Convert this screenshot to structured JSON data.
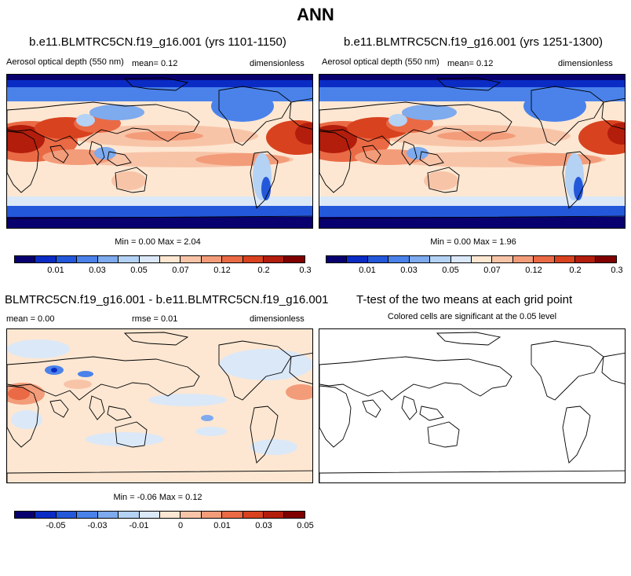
{
  "figure": {
    "title": "ANN"
  },
  "colors": {
    "scale": [
      "#08006f",
      "#0a2cc4",
      "#2458db",
      "#4a82ea",
      "#7eaaee",
      "#b4d2f4",
      "#dbe8f8",
      "#fde7d2",
      "#f8c4a8",
      "#f39c7a",
      "#ea6a45",
      "#d9421f",
      "#b31d0c",
      "#800000"
    ],
    "land_outline": "#000000",
    "background": "#ffffff"
  },
  "panels": {
    "p1": {
      "title": "b.e11.BLMTRC5CN.f19_g16.001 (yrs 1101-1150)",
      "variable": "Aerosol optical depth (550 nm)",
      "mean": "mean=   0.12",
      "units": "dimensionless",
      "minmax": "Min =   0.00 Max =   2.04"
    },
    "p2": {
      "title": "b.e11.BLMTRC5CN.f19_g16.001 (yrs 1251-1300)",
      "variable": "Aerosol optical depth (550 nm)",
      "mean": "mean=   0.12",
      "units": "dimensionless",
      "minmax": "Min =   0.00 Max =   1.96"
    },
    "p3": {
      "title": "BLMTRC5CN.f19_g16.001 - b.e11.BLMTRC5CN.f19_g16.001",
      "mean": "mean =   0.00",
      "rmse": "rmse =   0.01",
      "units": "dimensionless",
      "minmax": "Min =  -0.06 Max =   0.12"
    },
    "p4": {
      "title": "T-test of the two means at each grid point",
      "subtitle": "Colored cells are significant at the 0.05 level"
    }
  },
  "chart_data": [
    {
      "type": "heatmap",
      "title": "b.e11.BLMTRC5CN.f19_g16.001 (yrs 1101-1150)",
      "variable": "Aerosol optical depth (550 nm)",
      "units": "dimensionless",
      "mean": 0.12,
      "min": 0.0,
      "max": 2.04,
      "colorbar_ticks": [
        "0.01",
        "0.03",
        "0.05",
        "0.07",
        "0.12",
        "0.2",
        "0.3"
      ]
    },
    {
      "type": "heatmap",
      "title": "b.e11.BLMTRC5CN.f19_g16.001 (yrs 1251-1300)",
      "variable": "Aerosol optical depth (550 nm)",
      "units": "dimensionless",
      "mean": 0.12,
      "min": 0.0,
      "max": 1.96,
      "colorbar_ticks": [
        "0.01",
        "0.03",
        "0.05",
        "0.07",
        "0.12",
        "0.2",
        "0.3"
      ]
    },
    {
      "type": "heatmap",
      "title": "BLMTRC5CN.f19_g16.001 - b.e11.BLMTRC5CN.f19_g16.001",
      "units": "dimensionless",
      "mean": 0.0,
      "rmse": 0.01,
      "min": -0.06,
      "max": 0.12,
      "colorbar_ticks": [
        "-0.05",
        "-0.03",
        "-0.01",
        "0",
        "0.01",
        "0.03",
        "0.05"
      ]
    },
    {
      "type": "heatmap",
      "title": "T-test of the two means at each grid point",
      "significant_cells": 0
    }
  ]
}
